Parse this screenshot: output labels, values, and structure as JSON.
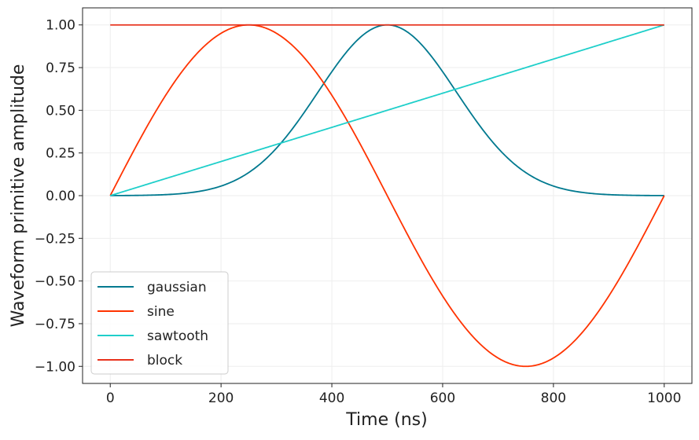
{
  "chart_data": {
    "type": "line",
    "title": "",
    "xlabel": "Time (ns)",
    "ylabel": "Waveform primitive amplitude",
    "xlim": [
      -50,
      1050
    ],
    "ylim": [
      -1.1,
      1.1
    ],
    "xticks": [
      0,
      200,
      400,
      600,
      800,
      1000
    ],
    "xtick_labels": [
      "0",
      "200",
      "400",
      "600",
      "800",
      "1000"
    ],
    "yticks": [
      1.0,
      0.75,
      0.5,
      0.25,
      0.0,
      -0.25,
      -0.5,
      -0.75,
      -1.0
    ],
    "ytick_labels": [
      "1.00",
      "0.75",
      "0.50",
      "0.25",
      "0.00",
      "−0.25",
      "−0.50",
      "−0.75",
      "−1.00"
    ],
    "grid": true,
    "legend_position": "lower-left",
    "x_range": [
      0,
      1000
    ],
    "series": [
      {
        "name": "gaussian",
        "color": "#00798f",
        "form": "exp(-(t-500)^2/(2*125^2))",
        "center": 500,
        "sigma": 125,
        "amplitude": 1.0
      },
      {
        "name": "sine",
        "color": "#ff3300",
        "form": "sin(2*pi*t/1000)",
        "period": 1000,
        "amplitude": 1.0
      },
      {
        "name": "sawtooth",
        "color": "#1fcfca",
        "form": "t/1000",
        "amplitude": 1.0
      },
      {
        "name": "block",
        "color": "#e8321c",
        "form": "1",
        "amplitude": 1.0
      }
    ]
  }
}
